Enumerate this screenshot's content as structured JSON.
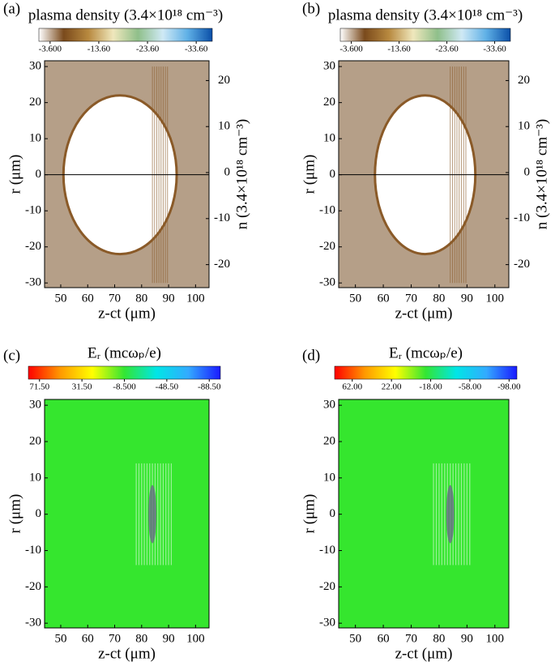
{
  "chart_data": [
    {
      "type": "heatmap",
      "panel_label": "(a)",
      "colorbar_label": "plasma density (3.4×10¹⁸ cm⁻³)",
      "clim": [
        -1.3,
        -36.9
      ],
      "colormap": [
        "#ffffff",
        "#7a4a1c",
        "#b8893f",
        "#efe7bc",
        "#8fbf8a",
        "#cfe9f5",
        "#5fb0e6",
        "#0a4fa8"
      ],
      "cticks": [
        {
          "value": -3.6,
          "label": "-3.600"
        },
        {
          "value": -13.6,
          "label": "-13.60"
        },
        {
          "value": -23.6,
          "label": "-23.60"
        },
        {
          "value": -33.6,
          "label": "-33.60"
        }
      ],
      "xlim": [
        44,
        105
      ],
      "xticks": [
        50,
        60,
        70,
        80,
        90,
        100
      ],
      "xlabel": "z-ct (μm)",
      "ylim": [
        -31.3,
        31.6
      ],
      "yticks": [
        -30,
        -20,
        -10,
        0,
        10,
        20,
        30
      ],
      "ylabel": "r (μm)",
      "y2lim": [
        -25,
        24.3
      ],
      "y2ticks": [
        -20,
        -10,
        0,
        10,
        20
      ],
      "y2label": "n (3.4×10¹⁸ cm⁻³)"
    },
    {
      "type": "heatmap",
      "panel_label": "(b)",
      "colorbar_label": "plasma density (3.4×10¹⁸ cm⁻³)",
      "clim": [
        -1.3,
        -36.9
      ],
      "colormap": [
        "#ffffff",
        "#7a4a1c",
        "#b8893f",
        "#efe7bc",
        "#8fbf8a",
        "#cfe9f5",
        "#5fb0e6",
        "#0a4fa8"
      ],
      "cticks": [
        {
          "value": -3.6,
          "label": "-3.600"
        },
        {
          "value": -13.6,
          "label": "-13.60"
        },
        {
          "value": -23.6,
          "label": "-23.60"
        },
        {
          "value": -33.6,
          "label": "-33.60"
        }
      ],
      "xlim": [
        44,
        105
      ],
      "xticks": [
        50,
        60,
        70,
        80,
        90,
        100
      ],
      "xlabel": "z-ct (μm)",
      "ylim": [
        -31.3,
        31.6
      ],
      "yticks": [
        -30,
        -20,
        -10,
        0,
        10,
        20,
        30
      ],
      "ylabel": "r (μm)",
      "y2lim": [
        -25,
        24.3
      ],
      "y2ticks": [
        -20,
        -10,
        0,
        10,
        20
      ],
      "y2label": "n (3.4×10¹⁸ cm⁻³)"
    },
    {
      "type": "heatmap",
      "panel_label": "(c)",
      "colorbar_label": "Eᵣ (mcωₚ/e)",
      "clim": [
        82,
        -99
      ],
      "colormap": [
        "#ff0000",
        "#ff9900",
        "#ffff00",
        "#33e633",
        "#00e6e6",
        "#33aaff",
        "#1a1aff"
      ],
      "cticks": [
        {
          "value": 71.5,
          "label": "71.50"
        },
        {
          "value": 31.5,
          "label": "31.50"
        },
        {
          "value": -8.5,
          "label": "-8.500"
        },
        {
          "value": -48.5,
          "label": "-48.50"
        },
        {
          "value": -88.5,
          "label": "-88.50"
        }
      ],
      "xlim": [
        44,
        105
      ],
      "xticks": [
        50,
        60,
        70,
        80,
        90,
        100
      ],
      "xlabel": "z-ct (μm)",
      "ylim": [
        -31.3,
        31.6
      ],
      "yticks": [
        -30,
        -20,
        -10,
        0,
        10,
        20,
        30
      ],
      "ylabel": "r (μm)"
    },
    {
      "type": "heatmap",
      "panel_label": "(d)",
      "colorbar_label": "Eᵣ (mcωₚ/e)",
      "clim": [
        80,
        -106
      ],
      "colormap": [
        "#ff0000",
        "#ff9900",
        "#ffff00",
        "#33e633",
        "#00e6e6",
        "#33aaff",
        "#1a1aff"
      ],
      "cticks": [
        {
          "value": 62,
          "label": "62.00"
        },
        {
          "value": 22,
          "label": "22.00"
        },
        {
          "value": -18,
          "label": "-18.00"
        },
        {
          "value": -58,
          "label": "-58.00"
        },
        {
          "value": -98,
          "label": "-98.00"
        }
      ],
      "xlim": [
        44,
        105
      ],
      "xticks": [
        50,
        60,
        70,
        80,
        90,
        100
      ],
      "xlabel": "z-ct (μm)",
      "ylim": [
        -31.3,
        31.6
      ],
      "yticks": [
        -30,
        -20,
        -10,
        0,
        10,
        20,
        30
      ],
      "ylabel": "r (μm)"
    }
  ]
}
